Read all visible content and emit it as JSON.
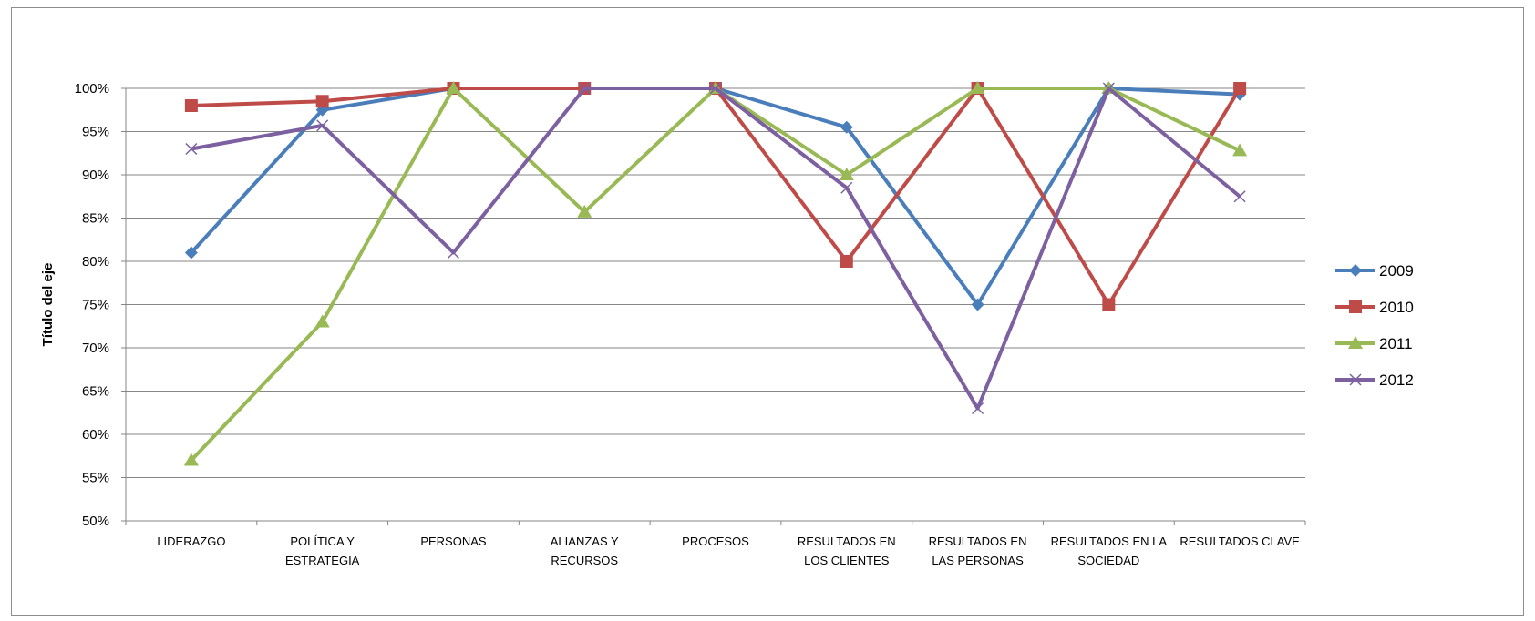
{
  "chart_data": {
    "type": "line",
    "title": "",
    "xlabel": "",
    "ylabel": "Título del eje",
    "ylim": [
      0.5,
      1.0
    ],
    "ytick_step": 0.05,
    "yticks": [
      "50%",
      "55%",
      "60%",
      "65%",
      "70%",
      "75%",
      "80%",
      "85%",
      "90%",
      "95%",
      "100%"
    ],
    "grid": true,
    "legend_position": "right",
    "categories": [
      [
        "LIDERAZGO"
      ],
      [
        "POLÍTICA Y",
        "ESTRATEGIA"
      ],
      [
        "PERSONAS"
      ],
      [
        "ALIANZAS Y",
        "RECURSOS"
      ],
      [
        "PROCESOS"
      ],
      [
        "RESULTADOS EN",
        "LOS CLIENTES"
      ],
      [
        "RESULTADOS EN",
        "LAS PERSONAS"
      ],
      [
        "RESULTADOS EN LA",
        "SOCIEDAD"
      ],
      [
        "RESULTADOS CLAVE"
      ]
    ],
    "series": [
      {
        "name": "2009",
        "color": "#4a7ebb",
        "marker": "diamond",
        "values": [
          0.81,
          0.975,
          1.0,
          1.0,
          1.0,
          0.955,
          0.75,
          1.0,
          0.993
        ]
      },
      {
        "name": "2010",
        "color": "#be4b48",
        "marker": "square",
        "values": [
          0.98,
          0.985,
          1.0,
          1.0,
          1.0,
          0.8,
          1.0,
          0.75,
          1.0
        ]
      },
      {
        "name": "2011",
        "color": "#98b954",
        "marker": "triangle",
        "values": [
          0.57,
          0.73,
          1.0,
          0.857,
          1.0,
          0.9,
          1.0,
          1.0,
          0.928
        ]
      },
      {
        "name": "2012",
        "color": "#7d60a0",
        "marker": "x",
        "values": [
          0.93,
          0.957,
          0.81,
          1.0,
          1.0,
          0.885,
          0.63,
          1.0,
          0.875
        ]
      }
    ]
  }
}
